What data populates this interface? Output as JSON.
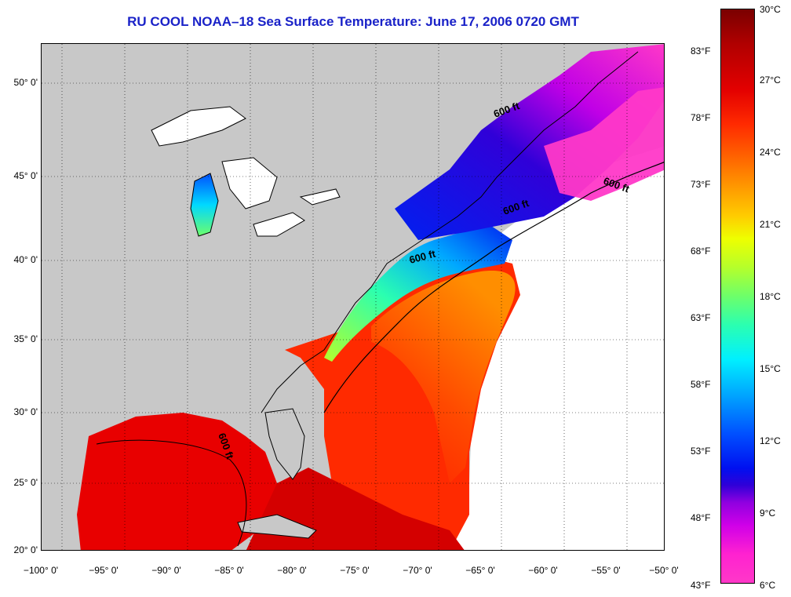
{
  "title": "RU COOL  NOAA–18  Sea Surface Temperature:  June 17, 2006 0720 GMT",
  "lat_labels": [
    "50° 0'",
    "45° 0'",
    "40° 0'",
    "35° 0'",
    "30° 0'",
    "25° 0'",
    "20° 0'"
  ],
  "lon_labels": [
    "−100° 0'",
    "−95° 0'",
    "−90° 0'",
    "−85° 0'",
    "−80° 0'",
    "−75° 0'",
    "−70° 0'",
    "−65° 0'",
    "−60° 0'",
    "−55° 0'",
    "−50° 0'"
  ],
  "colorbar": {
    "fahrenheit": [
      "83°F",
      "78°F",
      "73°F",
      "68°F",
      "63°F",
      "58°F",
      "53°F",
      "48°F",
      "43°F"
    ],
    "celsius": [
      "30°C",
      "27°C",
      "24°C",
      "21°C",
      "18°C",
      "15°C",
      "12°C",
      "9°C",
      "6°C"
    ]
  },
  "contour_label": "600 ft",
  "colors": {
    "land": "#c8c8c8",
    "cloud_no_data": "#ffffff",
    "title": "#1a22c8",
    "warm": "#e30000",
    "cool": "#0010f0",
    "cold": "#ff38c8"
  }
}
